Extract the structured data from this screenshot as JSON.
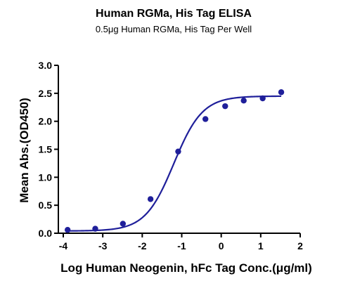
{
  "chart_data": {
    "type": "scatter",
    "title": "Human RGMa, His Tag ELISA",
    "subtitle": "0.5μg Human RGMa, His Tag Per Well",
    "xlabel": "Log Human Neogenin, hFc Tag Conc.(μg/ml)",
    "ylabel": "Mean Abs.(OD450)",
    "xlim": [
      -4,
      2
    ],
    "ylim": [
      0,
      3.0
    ],
    "x_ticks": [
      -4,
      -3,
      -2,
      -1,
      0,
      1,
      2
    ],
    "x_tick_labels": [
      "-4",
      "-3",
      "-2",
      "-1",
      "0",
      "1",
      "2"
    ],
    "y_ticks": [
      0.0,
      0.5,
      1.0,
      1.5,
      2.0,
      2.5,
      3.0
    ],
    "y_tick_labels": [
      "0.0",
      "0.5",
      "1.0",
      "1.5",
      "2.0",
      "2.5",
      "3.0"
    ],
    "grid": false,
    "legend": "none",
    "series": [
      {
        "x": [
          -3.89,
          -3.19,
          -2.49,
          -1.79,
          -1.09,
          -0.4,
          0.1,
          0.57,
          1.05,
          1.52
        ],
        "y": [
          0.06,
          0.08,
          0.17,
          0.61,
          1.46,
          2.04,
          2.27,
          2.37,
          2.41,
          2.52
        ],
        "marker": "circle"
      }
    ],
    "fit_curve": {
      "model": "four-parameter logistic",
      "bottom": 0.04,
      "top": 2.45,
      "log_ec50": -1.2,
      "hill_slope": 1.2
    },
    "colors": {
      "series": "#1f1f9a",
      "axes": "#000000"
    }
  }
}
